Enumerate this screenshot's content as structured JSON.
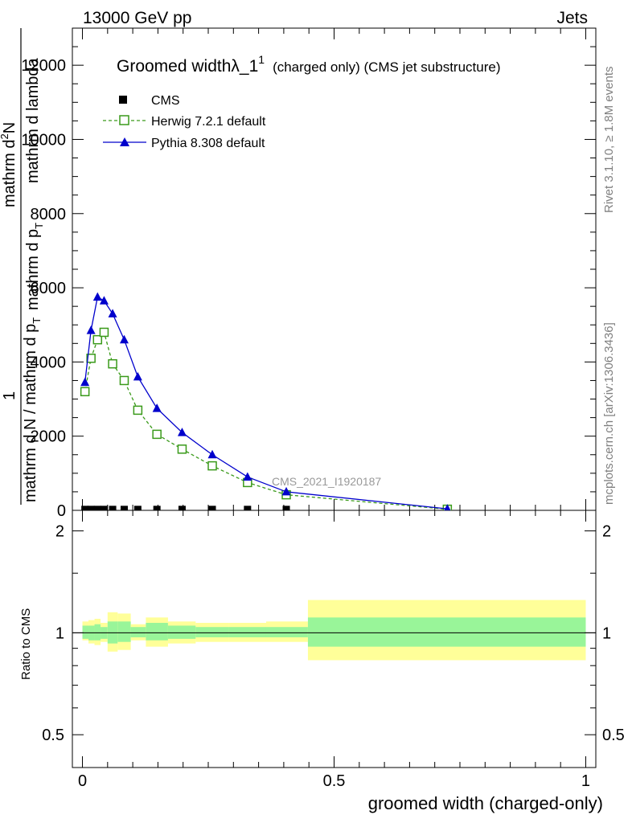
{
  "header": {
    "energy": "13000 GeV pp",
    "category": "Jets",
    "rivet_side": "Rivet 3.1.10, ≥ 1.8M events",
    "mcplots_side": "mcplots.cern.ch [arXiv:1306.3436]",
    "analysis_id": "CMS_2021_I1920187"
  },
  "titles": {
    "title_main": "Groomed width",
    "title_lambda": "λ_1",
    "title_sup": "1",
    "title_rest": "(charged only) (CMS jet substructure)",
    "ylabel_top_one": "1",
    "ylabel_top_num": "mathrm d",
    "ylabel_top_num_sup": "2",
    "ylabel_top_num_tail": "N",
    "ylabel_top_den1": "mathrm d p",
    "ylabel_top_den1_sub": "T",
    "ylabel_top_den2": "mathrm d lambda",
    "ylabel_bottom": "mathrm d N / mathrm d p",
    "ylabel_bottom_sub": "T",
    "ylabel_bottom_tail": "mathrmd N / mathrmd p",
    "ratio_ylabel": "Ratio to CMS",
    "xlabel": "groomed width (charged-only)"
  },
  "legend": [
    {
      "label": "CMS",
      "marker": "square-filled",
      "color": "#000000"
    },
    {
      "label": "Herwig 7.2.1 default",
      "marker": "square-open",
      "color": "#3a9a1a"
    },
    {
      "label": "Pythia 8.308 default",
      "marker": "triangle-filled",
      "color": "#0000cc"
    }
  ],
  "chart_data": {
    "type": "line",
    "xlim": [
      -0.02,
      1.02
    ],
    "main_ylim": [
      0,
      13000
    ],
    "ratio_ylim": [
      0.4,
      2.3
    ],
    "main_yticks": [
      {
        "v": 0,
        "label": "0"
      },
      {
        "v": 2000,
        "label": "2000"
      },
      {
        "v": 4000,
        "label": "4000"
      },
      {
        "v": 6000,
        "label": "6000"
      },
      {
        "v": 8000,
        "label": "8000"
      },
      {
        "v": 10000,
        "label": "10000"
      },
      {
        "v": 12000,
        "label": "12000"
      }
    ],
    "ratio_yticks": [
      {
        "v": 0.5,
        "label": "0.5"
      },
      {
        "v": 1,
        "label": "1"
      },
      {
        "v": 2,
        "label": "2"
      }
    ],
    "xticks": [
      {
        "v": 0,
        "label": "0"
      },
      {
        "v": 0.5,
        "label": "0.5"
      },
      {
        "v": 1,
        "label": "1"
      }
    ],
    "series": [
      {
        "name": "CMS",
        "x": [
          0.005,
          0.017,
          0.03,
          0.043,
          0.06,
          0.083,
          0.11,
          0.148,
          0.198,
          0.258,
          0.328,
          0.405,
          0.725
        ],
        "y": [
          25,
          25,
          25,
          25,
          25,
          25,
          25,
          25,
          25,
          25,
          25,
          25,
          25
        ]
      },
      {
        "name": "Herwig 7.2.1 default",
        "x": [
          0.005,
          0.017,
          0.03,
          0.043,
          0.06,
          0.083,
          0.11,
          0.148,
          0.198,
          0.258,
          0.328,
          0.405,
          0.725
        ],
        "y": [
          3200,
          4100,
          4600,
          4800,
          3950,
          3500,
          2700,
          2050,
          1650,
          1200,
          750,
          420,
          30
        ]
      },
      {
        "name": "Pythia 8.308 default",
        "x": [
          0.005,
          0.017,
          0.03,
          0.043,
          0.06,
          0.083,
          0.11,
          0.148,
          0.198,
          0.258,
          0.328,
          0.405,
          0.725
        ],
        "y": [
          3450,
          4850,
          5750,
          5650,
          5300,
          4600,
          3600,
          2750,
          2100,
          1500,
          900,
          500,
          40
        ]
      }
    ],
    "ratio_bands": {
      "edges": [
        0,
        0.012,
        0.024,
        0.036,
        0.05,
        0.07,
        0.096,
        0.126,
        0.17,
        0.225,
        0.29,
        0.365,
        0.448,
        1.0
      ],
      "inner": [
        [
          0.96,
          1.05
        ],
        [
          0.95,
          1.05
        ],
        [
          0.95,
          1.06
        ],
        [
          0.96,
          1.04
        ],
        [
          0.93,
          1.08
        ],
        [
          0.94,
          1.08
        ],
        [
          0.97,
          1.04
        ],
        [
          0.95,
          1.07
        ],
        [
          0.96,
          1.05
        ],
        [
          0.97,
          1.04
        ],
        [
          0.97,
          1.04
        ],
        [
          0.97,
          1.04
        ],
        [
          0.91,
          1.11
        ]
      ],
      "outer": [
        [
          0.95,
          1.08
        ],
        [
          0.93,
          1.09
        ],
        [
          0.92,
          1.1
        ],
        [
          0.94,
          1.07
        ],
        [
          0.88,
          1.15
        ],
        [
          0.89,
          1.14
        ],
        [
          0.95,
          1.06
        ],
        [
          0.91,
          1.11
        ],
        [
          0.93,
          1.08
        ],
        [
          0.94,
          1.07
        ],
        [
          0.94,
          1.07
        ],
        [
          0.94,
          1.08
        ],
        [
          0.83,
          1.25
        ]
      ]
    }
  }
}
